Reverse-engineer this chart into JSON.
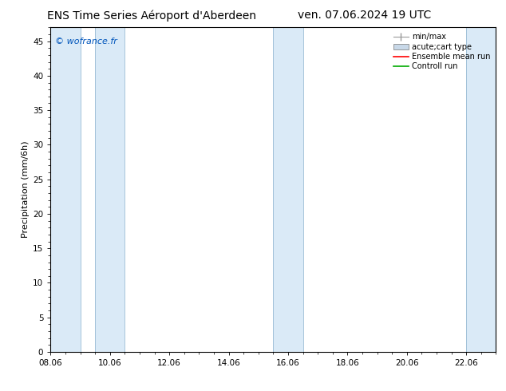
{
  "title_left": "ENS Time Series Aéroport d'Aberdeen",
  "title_right": "ven. 07.06.2024 19 UTC",
  "ylabel": "Precipitation (mm/6h)",
  "watermark": "© wofrance.fr",
  "watermark_color": "#0055bb",
  "ylim": [
    0,
    47
  ],
  "yticks": [
    0,
    5,
    10,
    15,
    20,
    25,
    30,
    35,
    40,
    45
  ],
  "xmin": 8.06,
  "xmax": 23.06,
  "xtick_labels": [
    "08.06",
    "10.06",
    "12.06",
    "14.06",
    "16.06",
    "18.06",
    "20.06",
    "22.06"
  ],
  "xtick_positions": [
    8.06,
    10.06,
    12.06,
    14.06,
    16.06,
    18.06,
    20.06,
    22.06
  ],
  "shaded_bands": [
    {
      "xmin": 8.06,
      "xmax": 9.06
    },
    {
      "xmin": 9.56,
      "xmax": 10.56
    },
    {
      "xmin": 15.56,
      "xmax": 16.56
    },
    {
      "xmin": 22.06,
      "xmax": 23.06
    }
  ],
  "band_color": "#daeaf7",
  "band_edge_color": "#99bbd4",
  "background_color": "#ffffff",
  "title_fontsize": 10,
  "ylabel_fontsize": 8,
  "tick_fontsize": 7.5,
  "watermark_fontsize": 8,
  "legend_fontsize": 7
}
